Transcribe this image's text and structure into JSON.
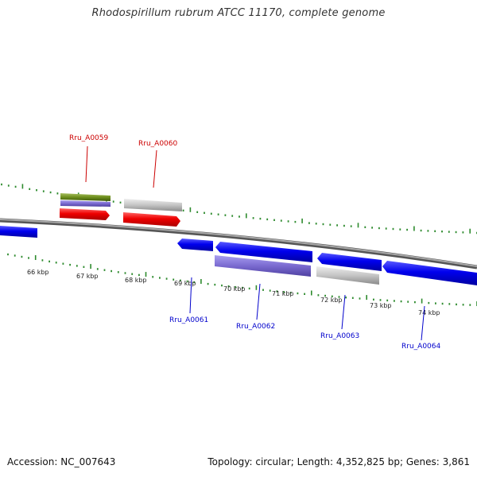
{
  "title": "Rhodospirillum rubrum ATCC 11170, complete genome",
  "footer": {
    "accession": "Accession: NC_007643",
    "summary": "Topology: circular; Length: 4,352,825 bp; Genes: 3,861"
  },
  "ruler": {
    "tick_labels": [
      "66 kbp",
      "67 kbp",
      "68 kbp",
      "69 kbp",
      "70 kbp",
      "71 kbp",
      "72 kbp",
      "73 kbp",
      "74 kbp"
    ]
  },
  "genes_top": [
    {
      "label": "Rru_A0059",
      "color": "#cc0000"
    },
    {
      "label": "Rru_A0060",
      "color": "#cc0000"
    }
  ],
  "genes_bottom": [
    {
      "label": "Rru_A0061",
      "color": "#0000cc"
    },
    {
      "label": "Rru_A0062",
      "color": "#0000cc"
    },
    {
      "label": "Rru_A0063",
      "color": "#0000cc"
    },
    {
      "label": "Rru_A0064",
      "color": "#0000cc"
    }
  ],
  "colors": {
    "forward_cds": "#ee0000",
    "reverse_cds": "#0000ee",
    "cog_green": "#6e8f1e",
    "cog_purple": "#7a6ad0",
    "cog_grey": "#c4c4c4",
    "backbone": "#888888",
    "dotted_ring": "#2e8b2e"
  }
}
